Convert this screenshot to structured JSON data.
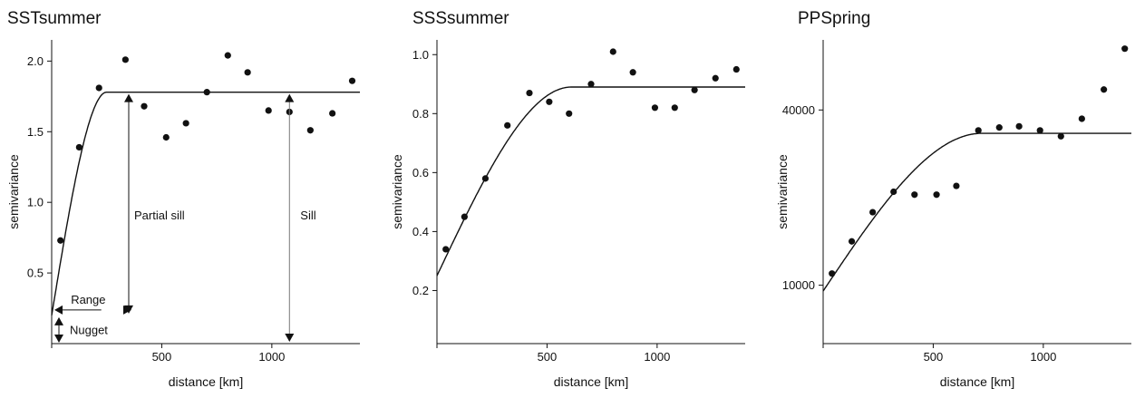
{
  "chart_data": [
    {
      "type": "scatter",
      "title": "SSTsummer",
      "xlabel": "distance [km]",
      "ylabel": "semivariance",
      "xlim": [
        0,
        1400
      ],
      "ylim": [
        0,
        2.15
      ],
      "x_ticks": [
        "500",
        "1000"
      ],
      "x_tick_values": [
        500,
        1000
      ],
      "y_ticks": [
        "0.5",
        "1.0",
        "1.5",
        "2.0"
      ],
      "y_tick_values": [
        0.5,
        1.0,
        1.5,
        2.0
      ],
      "series": [
        {
          "x": [
            40,
            125,
            215,
            335,
            420,
            520,
            610,
            705,
            800,
            890,
            985,
            1080,
            1175,
            1275,
            1365
          ],
          "y": [
            0.73,
            1.39,
            1.81,
            2.01,
            1.68,
            1.46,
            1.56,
            1.78,
            2.04,
            1.92,
            1.65,
            1.64,
            1.51,
            1.63,
            1.86
          ]
        }
      ],
      "model": {
        "type": "spherical",
        "nugget": 0.2,
        "sill": 1.78,
        "range": 250
      },
      "annotations": [
        "Range",
        "Nugget",
        "Partial sill",
        "Sill"
      ]
    },
    {
      "type": "scatter",
      "title": "SSSsummer",
      "xlabel": "distance [km]",
      "ylabel": "semivariance",
      "xlim": [
        0,
        1400
      ],
      "ylim": [
        0.02,
        1.05
      ],
      "x_ticks": [
        "500",
        "1000"
      ],
      "x_tick_values": [
        500,
        1000
      ],
      "y_ticks": [
        "0.2",
        "0.4",
        "0.6",
        "0.8",
        "1.0"
      ],
      "y_tick_values": [
        0.2,
        0.4,
        0.6,
        0.8,
        1.0
      ],
      "series": [
        {
          "x": [
            40,
            125,
            220,
            320,
            420,
            510,
            600,
            700,
            800,
            890,
            990,
            1080,
            1170,
            1265,
            1360
          ],
          "y": [
            0.34,
            0.45,
            0.58,
            0.76,
            0.87,
            0.84,
            0.8,
            0.9,
            1.01,
            0.94,
            0.82,
            0.82,
            0.88,
            0.92,
            0.95
          ]
        }
      ],
      "model": {
        "type": "spherical",
        "nugget": 0.25,
        "sill": 0.89,
        "range": 610
      }
    },
    {
      "type": "scatter",
      "title": "PPSpring",
      "xlabel": "distance [km]",
      "ylabel": "semivariance",
      "xlim": [
        0,
        1400
      ],
      "ylim": [
        0,
        52000
      ],
      "x_ticks": [
        "500",
        "1000"
      ],
      "x_tick_values": [
        500,
        1000
      ],
      "y_ticks": [
        "10000",
        "40000"
      ],
      "y_tick_values": [
        10000,
        40000
      ],
      "series": [
        {
          "x": [
            40,
            130,
            225,
            320,
            415,
            515,
            605,
            705,
            800,
            890,
            985,
            1080,
            1175,
            1275,
            1370
          ],
          "y": [
            12000,
            17500,
            22500,
            26000,
            25500,
            25500,
            27000,
            36500,
            37000,
            37200,
            36500,
            35500,
            38500,
            43500,
            50500
          ]
        }
      ],
      "model": {
        "type": "spherical",
        "nugget": 9000,
        "sill": 36000,
        "range": 720
      }
    }
  ]
}
